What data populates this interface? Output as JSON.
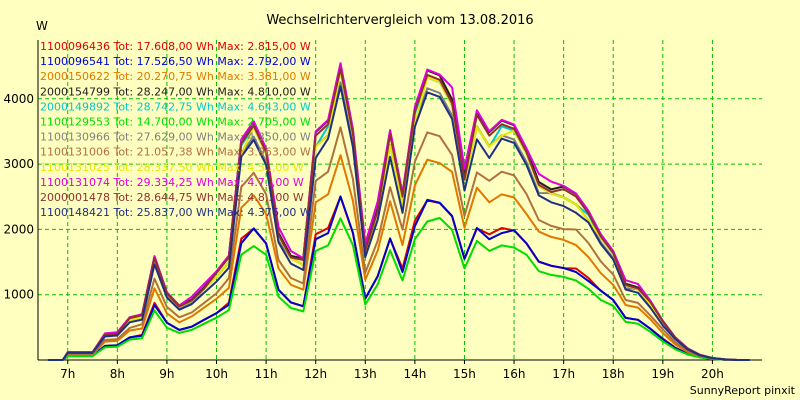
{
  "chart_data": {
    "type": "line",
    "title": "Wechselrichtervergleich vom 13.08.2016",
    "ylabel": "W",
    "footer": "SunnyReport pinxit",
    "ylim": [
      0,
      4900
    ],
    "xlim": [
      6.4,
      21.0
    ],
    "yticks": [
      1000,
      2000,
      3000,
      4000
    ],
    "xticks": [
      {
        "v": 7,
        "label": "7h"
      },
      {
        "v": 8,
        "label": "8h"
      },
      {
        "v": 9,
        "label": "9h"
      },
      {
        "v": 10,
        "label": "10h"
      },
      {
        "v": 11,
        "label": "11h"
      },
      {
        "v": 12,
        "label": "12h"
      },
      {
        "v": 13,
        "label": "13h"
      },
      {
        "v": 14,
        "label": "14h"
      },
      {
        "v": 15,
        "label": "15h"
      },
      {
        "v": 16,
        "label": "16h"
      },
      {
        "v": 17,
        "label": "17h"
      },
      {
        "v": 18,
        "label": "18h"
      },
      {
        "v": 19,
        "label": "19h"
      },
      {
        "v": 20,
        "label": "20h"
      }
    ],
    "grid": true,
    "legend_position": "top-left",
    "series": [
      {
        "name": "1100096436 Tot: 17.608,00 Wh Max: 2.815,00 W",
        "color": "#e00000",
        "scale": 0.54
      },
      {
        "name": "1100096541 Tot: 17.526,50 Wh Max: 2.792,00 W",
        "color": "#0000d0",
        "scale": 0.535
      },
      {
        "name": "2000150622 Tot: 20.270,75 Wh Max: 3.381,00 W",
        "color": "#e07800",
        "scale": 0.69
      },
      {
        "name": "2000154799 Tot: 28.247,00 Wh Max: 4.810,00 W",
        "color": "#202020",
        "scale": 0.985
      },
      {
        "name": "2000149892 Tot: 28.742,75 Wh Max: 4.643,00 W",
        "color": "#00c8c8",
        "scale": 0.95
      },
      {
        "name": "1100129553 Tot: 14.700,00 Wh Max: 2.705,00 W",
        "color": "#00dd00",
        "scale": 0.48
      },
      {
        "name": "1100130966 Tot: 27.629,00 Wh Max: 4.350,00 W",
        "color": "#808080",
        "scale": 0.93
      },
      {
        "name": "1100131006 Tot: 21.057,38 Wh Max: 3.963,00 W",
        "color": "#b07040",
        "scale": 0.77
      },
      {
        "name": "1100131025 Tot: 28.337,50 Wh Max: 4.5..,00 W",
        "color": "#e8e800",
        "scale": 0.945
      },
      {
        "name": "1100131074 Tot: 29.334,25 Wh Max: 4.7..,00 W",
        "color": "#e000e0",
        "scale": 1.0
      },
      {
        "name": "2000001478 Tot: 28.644,75 Wh Max: 4.8..,00 W",
        "color": "#903030",
        "scale": 0.97
      },
      {
        "name": "1100148421 Tot: 25.837,00 Wh Max: 4.376,00 W",
        "color": "#203080",
        "scale": 0.9
      }
    ],
    "profile_x": [
      6.6,
      6.9,
      7.0,
      7.25,
      7.5,
      7.75,
      8.0,
      8.25,
      8.5,
      8.75,
      9.0,
      9.25,
      9.5,
      9.75,
      10.0,
      10.25,
      10.5,
      10.75,
      11.0,
      11.25,
      11.5,
      11.75,
      12.0,
      12.25,
      12.5,
      12.75,
      13.0,
      13.25,
      13.5,
      13.75,
      14.0,
      14.25,
      14.5,
      14.75,
      15.0,
      15.25,
      15.5,
      15.75,
      16.0,
      16.25,
      16.5,
      16.75,
      17.0,
      17.25,
      17.5,
      17.75,
      18.0,
      18.25,
      18.5,
      18.75,
      19.0,
      19.25,
      19.5,
      19.75,
      20.0,
      20.25,
      20.5,
      20.75
    ],
    "profile_y": [
      0,
      0,
      120,
      120,
      120,
      400,
      420,
      650,
      700,
      1600,
      1050,
      850,
      950,
      1150,
      1350,
      1600,
      3400,
      3700,
      3300,
      2000,
      1650,
      1550,
      3500,
      3700,
      4600,
      3600,
      1750,
      2400,
      3500,
      2550,
      3900,
      4500,
      4450,
      4100,
      2900,
      3800,
      3500,
      3700,
      3650,
      3300,
      2800,
      2700,
      2650,
      2550,
      2300,
      1950,
      1700,
      1200,
      1150,
      900,
      600,
      350,
      180,
      80,
      30,
      10,
      0,
      0
    ]
  }
}
